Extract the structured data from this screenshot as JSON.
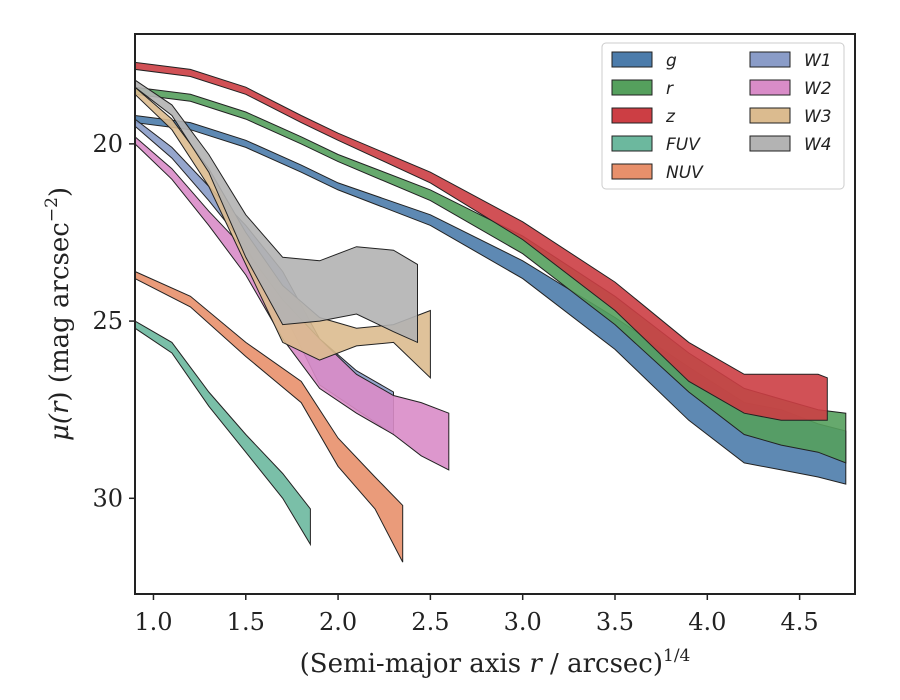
{
  "chart_data": {
    "type": "area",
    "xlabel_main": "(Semi-major axis ",
    "xlabel_var": "r",
    "xlabel_mid": " / arcsec)",
    "xlabel_sup": "1/4",
    "ylabel_main": "μ(",
    "ylabel_var": "r",
    "ylabel_rest": ") (mag arcsec",
    "ylabel_sup": "−2",
    "ylabel_close": ")",
    "xlim": [
      0.9,
      4.8
    ],
    "ylim": [
      32.7,
      16.9
    ],
    "y_inverted": true,
    "x_ticks": [
      1.0,
      1.5,
      2.0,
      2.5,
      3.0,
      3.5,
      4.0,
      4.5
    ],
    "x_tick_labels": [
      "1.0",
      "1.5",
      "2.0",
      "2.5",
      "3.0",
      "3.5",
      "4.0",
      "4.5"
    ],
    "y_ticks": [
      20,
      25,
      30
    ],
    "y_tick_labels": [
      "20",
      "25",
      "30"
    ],
    "grid": false,
    "legend_position": "top-right",
    "legend_columns": 2,
    "series": [
      {
        "name": "g",
        "color": "#4c7cab",
        "x": [
          0.9,
          1.2,
          1.5,
          1.8,
          2.0,
          2.5,
          3.0,
          3.5,
          3.9,
          4.2,
          4.4,
          4.6,
          4.75
        ],
        "mu_upper": [
          19.2,
          19.4,
          19.9,
          20.6,
          21.1,
          22.0,
          23.3,
          24.9,
          26.3,
          27.3,
          27.5,
          27.9,
          28.1
        ],
        "mu_lower": [
          19.4,
          19.6,
          20.1,
          20.8,
          21.3,
          22.3,
          23.8,
          25.8,
          27.8,
          29.0,
          29.2,
          29.4,
          29.6
        ]
      },
      {
        "name": "r",
        "color": "#55a05d",
        "x": [
          0.9,
          1.2,
          1.5,
          1.8,
          2.0,
          2.5,
          3.0,
          3.5,
          3.9,
          4.2,
          4.4,
          4.6,
          4.75
        ],
        "mu_upper": [
          18.4,
          18.6,
          19.1,
          19.8,
          20.3,
          21.3,
          22.6,
          24.3,
          25.9,
          26.9,
          27.2,
          27.5,
          27.6
        ],
        "mu_lower": [
          18.6,
          18.8,
          19.3,
          20.0,
          20.5,
          21.6,
          23.1,
          25.1,
          27.0,
          28.2,
          28.5,
          28.7,
          29.0
        ]
      },
      {
        "name": "z",
        "color": "#cc3e44",
        "x": [
          0.9,
          1.2,
          1.5,
          1.8,
          2.0,
          2.5,
          3.0,
          3.5,
          3.9,
          4.2,
          4.4,
          4.6,
          4.65
        ],
        "mu_upper": [
          17.7,
          17.9,
          18.4,
          19.2,
          19.7,
          20.8,
          22.2,
          23.9,
          25.6,
          26.5,
          26.5,
          26.5,
          26.6
        ],
        "mu_lower": [
          17.9,
          18.1,
          18.6,
          19.4,
          19.9,
          21.1,
          22.7,
          24.7,
          26.7,
          27.6,
          27.8,
          27.8,
          27.8
        ]
      },
      {
        "name": "FUV",
        "color": "#6cb89e",
        "x": [
          0.9,
          1.1,
          1.3,
          1.5,
          1.7,
          1.85
        ],
        "mu_upper": [
          25.0,
          25.6,
          27.0,
          28.2,
          29.3,
          30.3
        ],
        "mu_lower": [
          25.2,
          25.9,
          27.4,
          28.7,
          30.0,
          31.3
        ]
      },
      {
        "name": "NUV",
        "color": "#e8906b",
        "x": [
          0.9,
          1.2,
          1.5,
          1.8,
          2.0,
          2.2,
          2.35
        ],
        "mu_upper": [
          23.6,
          24.3,
          25.6,
          26.7,
          28.3,
          29.4,
          30.2
        ],
        "mu_lower": [
          23.8,
          24.6,
          26.0,
          27.3,
          29.1,
          30.3,
          31.8
        ]
      },
      {
        "name": "W1",
        "color": "#8a9cc8",
        "x": [
          0.9,
          1.1,
          1.3,
          1.5,
          1.7,
          1.9,
          2.1,
          2.3
        ],
        "mu_upper": [
          19.3,
          20.1,
          21.2,
          22.3,
          23.6,
          25.5,
          26.4,
          27.0
        ],
        "mu_lower": [
          19.5,
          20.4,
          21.6,
          22.9,
          24.7,
          26.8,
          27.5,
          28.2
        ]
      },
      {
        "name": "W2",
        "color": "#d98cc8",
        "x": [
          0.9,
          1.1,
          1.3,
          1.5,
          1.7,
          1.9,
          2.1,
          2.3,
          2.45,
          2.6
        ],
        "mu_upper": [
          19.8,
          20.7,
          21.9,
          23.0,
          24.4,
          25.5,
          26.5,
          27.1,
          27.3,
          27.6
        ],
        "mu_lower": [
          20.0,
          21.0,
          22.3,
          23.7,
          25.5,
          26.9,
          27.6,
          28.2,
          28.8,
          29.2
        ]
      },
      {
        "name": "W3",
        "color": "#dbbb8f",
        "x": [
          0.9,
          1.1,
          1.3,
          1.5,
          1.7,
          1.9,
          2.1,
          2.3,
          2.5
        ],
        "mu_upper": [
          18.4,
          19.3,
          20.7,
          22.5,
          24.0,
          24.9,
          25.2,
          25.1,
          24.7
        ],
        "mu_lower": [
          18.6,
          19.6,
          21.2,
          23.4,
          25.6,
          26.1,
          25.7,
          25.6,
          26.6
        ]
      },
      {
        "name": "W4",
        "color": "#b3b3b3",
        "x": [
          0.9,
          1.1,
          1.3,
          1.5,
          1.7,
          1.9,
          2.1,
          2.3,
          2.43
        ],
        "mu_upper": [
          18.2,
          18.9,
          20.3,
          22.0,
          23.2,
          23.3,
          22.9,
          23.0,
          23.4
        ],
        "mu_lower": [
          18.4,
          19.2,
          20.8,
          23.2,
          25.1,
          25.0,
          24.8,
          25.3,
          25.6
        ]
      }
    ]
  }
}
